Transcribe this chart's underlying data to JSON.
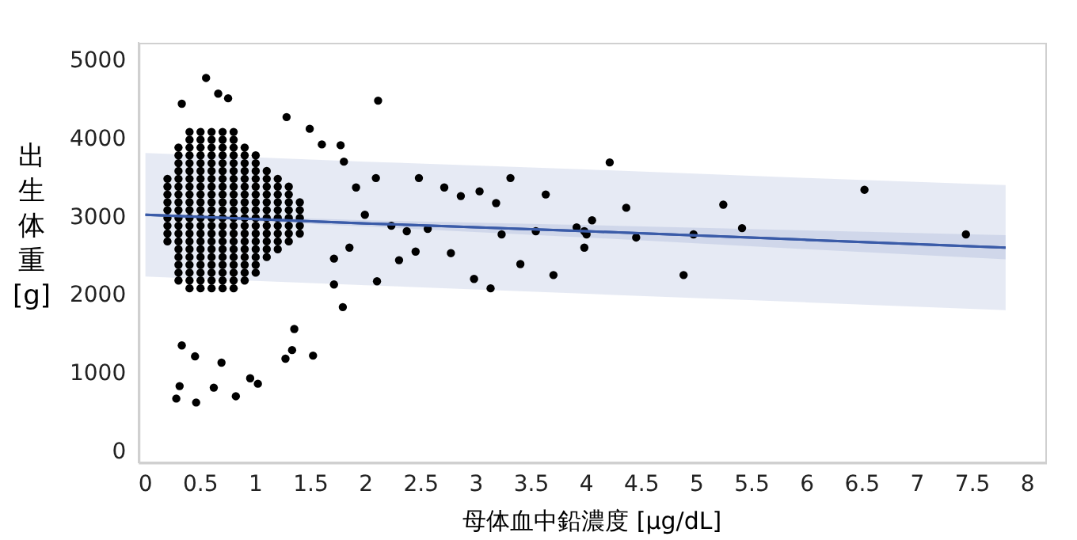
{
  "chart_data": {
    "type": "scatter",
    "xlabel": "母体血中鉛濃度 [μg/dL]",
    "ylabel": "出生体重 [g]",
    "xlim": [
      -0.06,
      8.16
    ],
    "ylim": [
      -130,
      5240
    ],
    "xticks": [
      0,
      {
        "value": 0.5,
        "label": "0.5"
      },
      1,
      {
        "value": 1.5,
        "label": "1.5"
      },
      2,
      {
        "value": 2.5,
        "label": "2.5"
      },
      3,
      {
        "value": 3.5,
        "label": "3.5"
      },
      4,
      {
        "value": 4.5,
        "label": "4.5"
      },
      5,
      {
        "value": 5.5,
        "label": "5.5"
      },
      6,
      {
        "value": 6.5,
        "label": "6.5"
      },
      7,
      {
        "value": 7.5,
        "label": "7.5"
      },
      8
    ],
    "yticks": [
      0,
      1000,
      2000,
      3000,
      4000,
      5000
    ],
    "grid": false,
    "legend": false,
    "series": [
      {
        "color": "#000000",
        "marker": "circle",
        "x": [
          0.2,
          0.2,
          0.2,
          0.2,
          0.2,
          0.2,
          0.2,
          0.2,
          0.2,
          0.3,
          0.3,
          0.3,
          0.3,
          0.3,
          0.3,
          0.3,
          0.3,
          0.3,
          0.3,
          0.3,
          0.3,
          0.3,
          0.3,
          0.3,
          0.3,
          0.3,
          0.3,
          0.4,
          0.4,
          0.4,
          0.4,
          0.4,
          0.4,
          0.4,
          0.4,
          0.4,
          0.4,
          0.4,
          0.4,
          0.4,
          0.4,
          0.4,
          0.4,
          0.4,
          0.4,
          0.4,
          0.4,
          0.4,
          0.5,
          0.5,
          0.5,
          0.5,
          0.5,
          0.5,
          0.5,
          0.5,
          0.5,
          0.5,
          0.5,
          0.5,
          0.5,
          0.5,
          0.5,
          0.5,
          0.5,
          0.5,
          0.5,
          0.5,
          0.5,
          0.6,
          0.6,
          0.6,
          0.6,
          0.6,
          0.6,
          0.6,
          0.6,
          0.6,
          0.6,
          0.6,
          0.6,
          0.6,
          0.6,
          0.6,
          0.6,
          0.6,
          0.6,
          0.6,
          0.6,
          0.6,
          0.7,
          0.7,
          0.7,
          0.7,
          0.7,
          0.7,
          0.7,
          0.7,
          0.7,
          0.7,
          0.7,
          0.7,
          0.7,
          0.7,
          0.7,
          0.7,
          0.7,
          0.7,
          0.7,
          0.7,
          0.7,
          0.8,
          0.8,
          0.8,
          0.8,
          0.8,
          0.8,
          0.8,
          0.8,
          0.8,
          0.8,
          0.8,
          0.8,
          0.8,
          0.8,
          0.8,
          0.8,
          0.8,
          0.8,
          0.8,
          0.8,
          0.8,
          0.9,
          0.9,
          0.9,
          0.9,
          0.9,
          0.9,
          0.9,
          0.9,
          0.9,
          0.9,
          0.9,
          0.9,
          0.9,
          0.9,
          0.9,
          0.9,
          0.9,
          0.9,
          1.0,
          1.0,
          1.0,
          1.0,
          1.0,
          1.0,
          1.0,
          1.0,
          1.0,
          1.0,
          1.0,
          1.0,
          1.0,
          1.0,
          1.0,
          1.0,
          1.1,
          1.1,
          1.1,
          1.1,
          1.1,
          1.1,
          1.1,
          1.1,
          1.1,
          1.1,
          1.1,
          1.1,
          1.2,
          1.2,
          1.2,
          1.2,
          1.2,
          1.2,
          1.2,
          1.2,
          1.2,
          1.2,
          1.3,
          1.3,
          1.3,
          1.3,
          1.3,
          1.3,
          1.3,
          1.3,
          1.4,
          1.4,
          1.4,
          1.4,
          1.4,
          0.55,
          0.66,
          0.75,
          0.33,
          2.11,
          1.28,
          1.49,
          1.6,
          1.77,
          1.8,
          1.91,
          2.09,
          2.48,
          2.71,
          2.86,
          3.03,
          3.18,
          3.31,
          3.23,
          3.4,
          3.13,
          2.98,
          2.77,
          2.45,
          2.3,
          2.1,
          1.79,
          1.71,
          1.52,
          1.27,
          1.33,
          1.35,
          0.95,
          1.02,
          0.82,
          0.46,
          0.28,
          0.31,
          0.62,
          0.69,
          0.45,
          0.33,
          2.23,
          2.37,
          2.56,
          1.99,
          1.85,
          1.71,
          3.63,
          3.7,
          3.54,
          3.91,
          3.98,
          4.0,
          3.98,
          4.05,
          4.21,
          4.36,
          4.45,
          4.88,
          4.97,
          5.24,
          5.41,
          6.52,
          7.44
        ],
        "values": [
          2700,
          2800,
          2900,
          3000,
          3100,
          3200,
          3300,
          3400,
          3500,
          2200,
          2300,
          2400,
          2500,
          2600,
          2700,
          2800,
          2900,
          3000,
          3100,
          3200,
          3300,
          3400,
          3500,
          3600,
          3700,
          3800,
          3900,
          2100,
          2200,
          2300,
          2400,
          2500,
          2600,
          2700,
          2800,
          2900,
          3000,
          3100,
          3200,
          3300,
          3400,
          3500,
          3600,
          3700,
          3800,
          3900,
          4000,
          4100,
          2100,
          2200,
          2300,
          2400,
          2500,
          2600,
          2700,
          2800,
          2900,
          3000,
          3100,
          3200,
          3300,
          3400,
          3500,
          3600,
          3700,
          3800,
          3900,
          4000,
          4100,
          2100,
          2200,
          2300,
          2400,
          2500,
          2600,
          2700,
          2800,
          2900,
          3000,
          3100,
          3200,
          3300,
          3400,
          3500,
          3600,
          3700,
          3800,
          3900,
          4000,
          4100,
          2100,
          2200,
          2300,
          2400,
          2500,
          2600,
          2700,
          2800,
          2900,
          3000,
          3100,
          3200,
          3300,
          3400,
          3500,
          3600,
          3700,
          3800,
          3900,
          4000,
          4100,
          2100,
          2200,
          2300,
          2400,
          2500,
          2600,
          2700,
          2800,
          2900,
          3000,
          3100,
          3200,
          3300,
          3400,
          3500,
          3600,
          3700,
          3800,
          3900,
          4000,
          4100,
          2200,
          2300,
          2400,
          2500,
          2600,
          2700,
          2800,
          2900,
          3000,
          3100,
          3200,
          3300,
          3400,
          3500,
          3600,
          3700,
          3800,
          3900,
          2300,
          2400,
          2500,
          2600,
          2700,
          2800,
          2900,
          3000,
          3100,
          3200,
          3300,
          3400,
          3500,
          3600,
          3700,
          3800,
          2500,
          2600,
          2700,
          2800,
          2900,
          3000,
          3100,
          3200,
          3300,
          3400,
          3500,
          3600,
          2600,
          2700,
          2800,
          2900,
          3000,
          3100,
          3200,
          3300,
          3400,
          3500,
          2700,
          2800,
          2900,
          3000,
          3100,
          3200,
          3300,
          3400,
          2800,
          2900,
          3000,
          3100,
          3200,
          4790,
          4590,
          4530,
          4460,
          4500,
          4290,
          4140,
          3940,
          3930,
          3720,
          3390,
          3510,
          3510,
          3390,
          3280,
          3340,
          3190,
          3510,
          2790,
          2410,
          2100,
          2220,
          2550,
          2570,
          2460,
          2190,
          1860,
          2150,
          1240,
          1200,
          1310,
          1580,
          950,
          880,
          720,
          640,
          690,
          850,
          830,
          1150,
          1230,
          1370,
          2900,
          2830,
          2860,
          3040,
          2620,
          2480,
          3300,
          2270,
          2830,
          2880,
          2830,
          2790,
          2620,
          2970,
          3710,
          3130,
          2750,
          2270,
          2790,
          3170,
          2870,
          3360,
          2790
        ]
      },
      {
        "type": "line",
        "color": "#3a5ba8",
        "marker": "none",
        "x": [
          0,
          2,
          4,
          6,
          7.8
        ],
        "values": [
          3040,
          2930,
          2830,
          2720,
          2620
        ],
        "lower": [
          3020,
          2890,
          2750,
          2600,
          2470
        ],
        "upper": [
          3060,
          2970,
          2910,
          2840,
          2780
        ]
      },
      {
        "type": "line",
        "color": "#3a5ba8",
        "marker": "none",
        "x": [
          0,
          2,
          4,
          6,
          7.8
        ],
        "values": [
          3040,
          2930,
          2830,
          2720,
          2620
        ],
        "lower": [
          2250,
          2140,
          2030,
          1920,
          1820
        ],
        "upper": [
          3830,
          3720,
          3620,
          3510,
          3420
        ]
      }
    ]
  }
}
